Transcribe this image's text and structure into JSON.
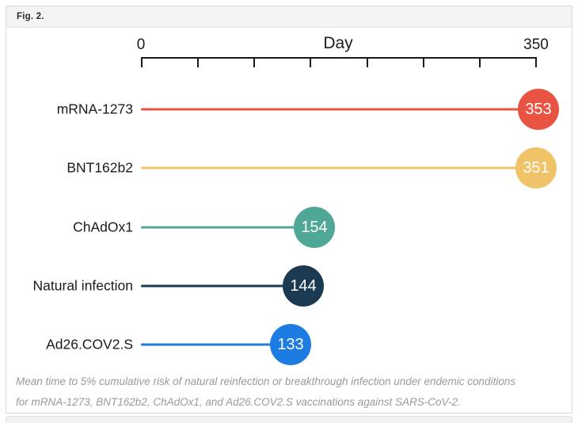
{
  "figure": {
    "header_label": "Fig. 2.",
    "caption": "Mean time to 5% cumulative risk of natural reinfection or breakthrough infection under endemic conditions for mRNA-1273, BNT162b2, ChAdOx1, and Ad26.COV2.S vaccinations against SARS-CoV-2."
  },
  "chart_data": {
    "type": "bar",
    "variant": "lollipop",
    "orientation": "horizontal",
    "title": "",
    "xlabel": "Day",
    "ylabel": "",
    "xlim": [
      0,
      350
    ],
    "xticks": [
      0,
      50,
      100,
      150,
      200,
      250,
      300,
      350
    ],
    "visible_tick_labels": [
      "0",
      "350"
    ],
    "grid": false,
    "categories": [
      "mRNA-1273",
      "BNT162b2",
      "ChAdOx1",
      "Natural infection",
      "Ad26.COV2.S"
    ],
    "values": [
      353,
      351,
      154,
      144,
      133
    ],
    "value_labels": [
      "353",
      "351",
      "154",
      "144",
      "133"
    ],
    "colors": [
      "#e85441",
      "#f0c368",
      "#4fa796",
      "#1b3a52",
      "#1c7ce2"
    ],
    "value_label_color": "#ffffff",
    "axis_color": "#1a1a1a"
  }
}
